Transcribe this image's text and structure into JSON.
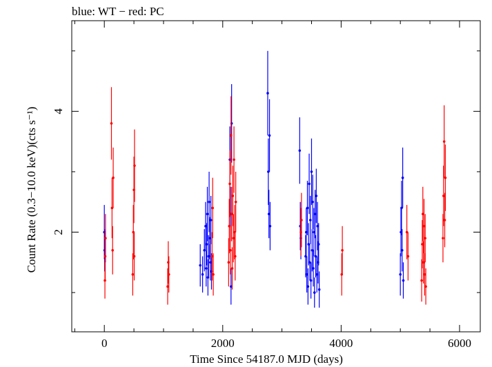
{
  "chart_data": {
    "type": "scatter",
    "title": "blue: WT − red: PC",
    "xlabel": "Time Since 54187.0 MJD (days)",
    "ylabel": "Count Rate (0.3−10.0 keV)(cts s⁻¹)",
    "xlim": [
      -550,
      6350
    ],
    "ylim": [
      0.35,
      5.5
    ],
    "x_ticks": [
      {
        "v": 0,
        "label": "0"
      },
      {
        "v": 2000,
        "label": "2000"
      },
      {
        "v": 4000,
        "label": "4000"
      },
      {
        "v": 6000,
        "label": "6000"
      }
    ],
    "y_ticks": [
      {
        "v": 2,
        "label": "2"
      },
      {
        "v": 4,
        "label": "4"
      }
    ],
    "grid": false,
    "colors": {
      "WT": "#0000ff",
      "PC": "#ff0000"
    },
    "series": [
      {
        "name": "WT",
        "points": [
          [
            0,
            2.0,
            0.45
          ],
          [
            5,
            1.7,
            0.35
          ],
          [
            1620,
            1.45,
            0.35
          ],
          [
            1660,
            1.3,
            0.3
          ],
          [
            1690,
            1.7,
            0.35
          ],
          [
            1710,
            2.1,
            0.4
          ],
          [
            1720,
            1.4,
            0.3
          ],
          [
            1730,
            1.8,
            0.35
          ],
          [
            1740,
            2.3,
            0.45
          ],
          [
            1750,
            1.25,
            0.3
          ],
          [
            1760,
            1.6,
            0.35
          ],
          [
            1770,
            2.5,
            0.5
          ],
          [
            1780,
            1.9,
            0.35
          ],
          [
            1790,
            1.5,
            0.3
          ],
          [
            1800,
            2.2,
            0.4
          ],
          [
            1810,
            1.35,
            0.3
          ],
          [
            2120,
            3.2,
            0.55
          ],
          [
            2130,
            2.3,
            0.45
          ],
          [
            2140,
            1.1,
            0.3
          ],
          [
            2150,
            3.8,
            0.65
          ],
          [
            2760,
            4.3,
            0.7
          ],
          [
            2770,
            3.0,
            0.55
          ],
          [
            2780,
            2.3,
            0.4
          ],
          [
            2790,
            3.6,
            0.6
          ],
          [
            2800,
            2.1,
            0.4
          ],
          [
            3300,
            3.35,
            0.55
          ],
          [
            3310,
            2.1,
            0.4
          ],
          [
            3320,
            1.9,
            0.35
          ],
          [
            3400,
            1.6,
            0.35
          ],
          [
            3410,
            2.0,
            0.4
          ],
          [
            3420,
            1.3,
            0.3
          ],
          [
            3430,
            2.4,
            0.45
          ],
          [
            3440,
            1.1,
            0.3
          ],
          [
            3450,
            1.8,
            0.35
          ],
          [
            3460,
            2.8,
            0.5
          ],
          [
            3470,
            1.5,
            0.3
          ],
          [
            3480,
            2.2,
            0.4
          ],
          [
            3490,
            1.2,
            0.3
          ],
          [
            3500,
            3.0,
            0.55
          ],
          [
            3510,
            1.7,
            0.35
          ],
          [
            3520,
            2.5,
            0.45
          ],
          [
            3530,
            1.4,
            0.3
          ],
          [
            3540,
            2.0,
            0.4
          ],
          [
            3550,
            1.0,
            0.25
          ],
          [
            3560,
            2.3,
            0.4
          ],
          [
            3570,
            1.6,
            0.35
          ],
          [
            3580,
            2.6,
            0.45
          ],
          [
            3590,
            1.3,
            0.3
          ],
          [
            3600,
            2.1,
            0.4
          ],
          [
            3610,
            1.5,
            0.35
          ],
          [
            3620,
            1.8,
            0.35
          ],
          [
            3630,
            1.05,
            0.3
          ],
          [
            5000,
            1.3,
            0.35
          ],
          [
            5010,
            2.0,
            0.4
          ],
          [
            5020,
            2.4,
            0.45
          ],
          [
            5030,
            1.7,
            0.35
          ],
          [
            5040,
            2.9,
            0.5
          ],
          [
            5050,
            1.2,
            0.3
          ]
        ]
      },
      {
        "name": "PC",
        "points": [
          [
            10,
            1.2,
            0.3
          ],
          [
            15,
            1.6,
            0.4
          ],
          [
            20,
            1.9,
            0.4
          ],
          [
            120,
            3.8,
            0.6
          ],
          [
            130,
            2.4,
            0.5
          ],
          [
            140,
            1.7,
            0.4
          ],
          [
            150,
            2.9,
            0.5
          ],
          [
            480,
            1.3,
            0.35
          ],
          [
            490,
            2.0,
            0.45
          ],
          [
            500,
            2.7,
            0.55
          ],
          [
            505,
            1.6,
            0.4
          ],
          [
            510,
            3.1,
            0.6
          ],
          [
            1070,
            1.1,
            0.3
          ],
          [
            1080,
            1.5,
            0.35
          ],
          [
            1090,
            1.3,
            0.3
          ],
          [
            1820,
            1.6,
            0.4
          ],
          [
            1830,
            2.4,
            0.5
          ],
          [
            1840,
            1.3,
            0.35
          ],
          [
            2100,
            1.5,
            0.4
          ],
          [
            2110,
            2.1,
            0.45
          ],
          [
            2120,
            2.8,
            0.55
          ],
          [
            2130,
            1.7,
            0.4
          ],
          [
            2140,
            3.6,
            0.65
          ],
          [
            2150,
            2.3,
            0.45
          ],
          [
            2160,
            1.4,
            0.35
          ],
          [
            2170,
            2.6,
            0.5
          ],
          [
            2180,
            1.9,
            0.4
          ],
          [
            2190,
            3.2,
            0.55
          ],
          [
            2200,
            2.0,
            0.45
          ],
          [
            2210,
            1.6,
            0.4
          ],
          [
            2220,
            2.5,
            0.5
          ],
          [
            3320,
            2.0,
            0.4
          ],
          [
            3330,
            2.2,
            0.45
          ],
          [
            4010,
            1.3,
            0.35
          ],
          [
            4020,
            1.7,
            0.4
          ],
          [
            5110,
            2.0,
            0.45
          ],
          [
            5130,
            1.6,
            0.4
          ],
          [
            5360,
            1.2,
            0.35
          ],
          [
            5370,
            1.8,
            0.4
          ],
          [
            5380,
            2.3,
            0.45
          ],
          [
            5390,
            1.5,
            0.35
          ],
          [
            5400,
            2.1,
            0.45
          ],
          [
            5410,
            1.3,
            0.35
          ],
          [
            5420,
            1.9,
            0.4
          ],
          [
            5430,
            1.1,
            0.3
          ],
          [
            5720,
            1.9,
            0.4
          ],
          [
            5730,
            2.6,
            0.5
          ],
          [
            5740,
            3.5,
            0.6
          ],
          [
            5750,
            2.2,
            0.45
          ],
          [
            5760,
            2.9,
            0.55
          ]
        ]
      }
    ]
  }
}
